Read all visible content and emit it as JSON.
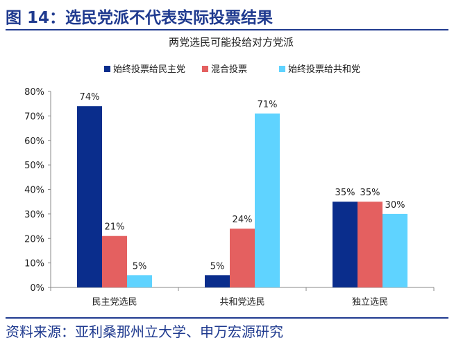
{
  "figure": {
    "title": "图 14：选民党派不代表实际投票结果",
    "source": "资料来源：亚利桑那州立大学、申万宏源研究"
  },
  "colors": {
    "heading": "#1F3A8F",
    "series": [
      "#0A2D8C",
      "#E46060",
      "#5FD3FF"
    ]
  },
  "chart_data": {
    "type": "bar",
    "title": "两党选民可能投给对方党派",
    "categories": [
      "民主党选民",
      "共和党选民",
      "独立选民"
    ],
    "series": [
      {
        "name": "始终投票给民主党",
        "values": [
          74,
          5,
          35
        ],
        "labels": [
          "74%",
          "5%",
          "35%"
        ]
      },
      {
        "name": "混合投票",
        "values": [
          21,
          24,
          35
        ],
        "labels": [
          "21%",
          "24%",
          "35%"
        ]
      },
      {
        "name": "始终投票给共和党",
        "values": [
          5,
          71,
          30
        ],
        "labels": [
          "5%",
          "71%",
          "30%"
        ]
      }
    ],
    "yticks": [
      "0%",
      "10%",
      "20%",
      "30%",
      "40%",
      "50%",
      "60%",
      "70%",
      "80%"
    ],
    "ylim": [
      0,
      80
    ],
    "legend_position": "top",
    "grid": false
  }
}
